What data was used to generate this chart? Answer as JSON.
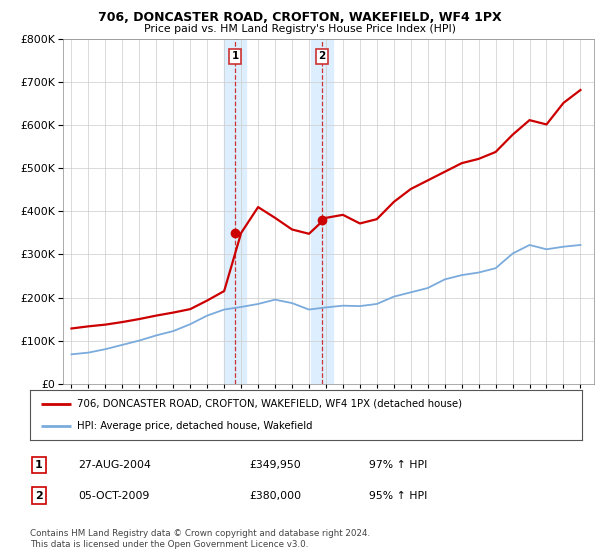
{
  "title1": "706, DONCASTER ROAD, CROFTON, WAKEFIELD, WF4 1PX",
  "title2": "Price paid vs. HM Land Registry's House Price Index (HPI)",
  "legend_property": "706, DONCASTER ROAD, CROFTON, WAKEFIELD, WF4 1PX (detached house)",
  "legend_hpi": "HPI: Average price, detached house, Wakefield",
  "sale1_date": "27-AUG-2004",
  "sale1_price": "£349,950",
  "sale1_hpi": "97% ↑ HPI",
  "sale2_date": "05-OCT-2009",
  "sale2_price": "£380,000",
  "sale2_hpi": "95% ↑ HPI",
  "footnote": "Contains HM Land Registry data © Crown copyright and database right 2024.\nThis data is licensed under the Open Government Licence v3.0.",
  "property_color": "#cc0000",
  "hpi_color": "#7aabdc",
  "shade_color": "#ddeeff",
  "sale1_x": 2004.65,
  "sale2_x": 2009.76,
  "ylim": [
    0,
    800000
  ],
  "xlim_left": 1994.5,
  "xlim_right": 2025.8,
  "years": [
    1995,
    1996,
    1997,
    1998,
    1999,
    2000,
    2001,
    2002,
    2003,
    2004,
    2005,
    2006,
    2007,
    2008,
    2009,
    2010,
    2011,
    2012,
    2013,
    2014,
    2015,
    2016,
    2017,
    2018,
    2019,
    2020,
    2021,
    2022,
    2023,
    2024,
    2025
  ],
  "hpi_values": [
    68000,
    72000,
    80000,
    90000,
    100000,
    112000,
    122000,
    138000,
    158000,
    172000,
    178000,
    185000,
    195000,
    187000,
    172000,
    177000,
    181000,
    180000,
    185000,
    202000,
    212000,
    222000,
    242000,
    252000,
    258000,
    268000,
    302000,
    322000,
    312000,
    318000,
    322000
  ],
  "property_x": [
    1995,
    1996,
    1997,
    1998,
    1999,
    2000,
    2001,
    2002,
    2003,
    2004,
    2005,
    2006,
    2007,
    2008,
    2009,
    2010,
    2011,
    2012,
    2013,
    2014,
    2015,
    2016,
    2017,
    2018,
    2019,
    2020,
    2021,
    2022,
    2023,
    2024,
    2025
  ],
  "property_y": [
    128000,
    133000,
    137000,
    143000,
    150000,
    158000,
    165000,
    173000,
    193000,
    215000,
    350000,
    410000,
    385000,
    358000,
    348000,
    385000,
    392000,
    372000,
    382000,
    422000,
    452000,
    472000,
    492000,
    512000,
    522000,
    538000,
    578000,
    612000,
    602000,
    652000,
    682000
  ],
  "sale1_y": 349950,
  "sale2_y": 380000
}
